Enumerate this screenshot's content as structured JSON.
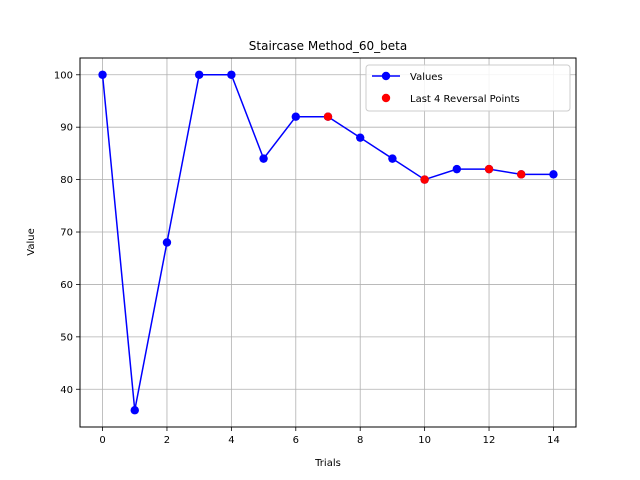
{
  "chart_data": {
    "type": "line",
    "title": "Staircase Method_60_beta",
    "xlabel": "Trials",
    "ylabel": "Value",
    "xlim": [
      -0.7,
      14.7
    ],
    "ylim": [
      32.8,
      103.2
    ],
    "xticks": [
      0,
      2,
      4,
      6,
      8,
      10,
      12,
      14
    ],
    "yticks": [
      40,
      50,
      60,
      70,
      80,
      90,
      100
    ],
    "grid": true,
    "legend_position": "top-right",
    "series": [
      {
        "name": "Values",
        "color": "#0000ff",
        "marker": "circle",
        "x": [
          0,
          1,
          2,
          3,
          4,
          5,
          6,
          7,
          8,
          9,
          10,
          11,
          12,
          13,
          14
        ],
        "values": [
          100,
          36,
          68,
          100,
          100,
          84,
          92,
          92,
          88,
          84,
          80,
          82,
          82,
          81,
          81
        ]
      },
      {
        "name": "Last 4 Reversal Points",
        "color": "#ff0000",
        "marker": "circle",
        "line": false,
        "x": [
          7,
          10,
          12,
          13
        ],
        "values": [
          92,
          80,
          82,
          81
        ]
      }
    ]
  }
}
